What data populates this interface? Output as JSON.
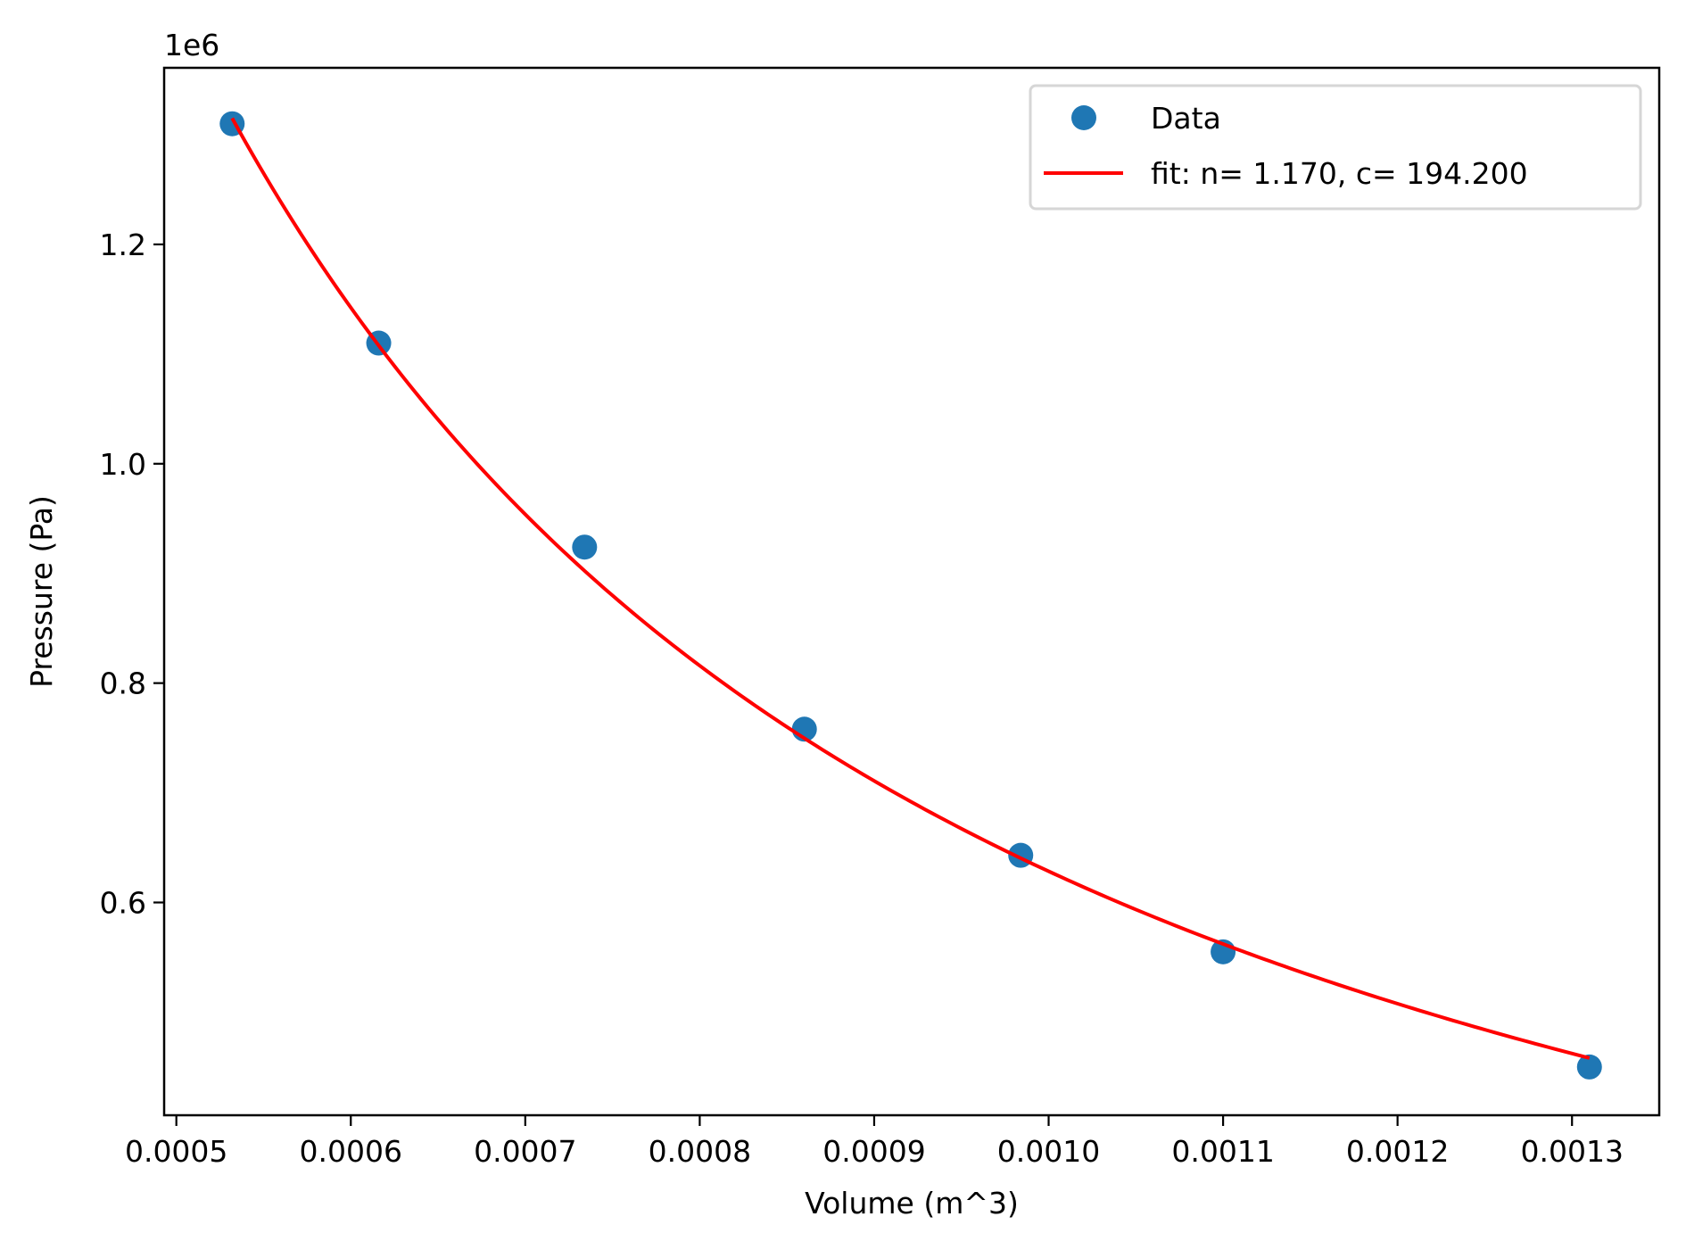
{
  "chart_data": {
    "type": "scatter",
    "title": "",
    "xlabel": "Volume (m^3)",
    "ylabel": "Pressure (Pa)",
    "y_offset_label": "1e6",
    "xlim": [
      0.000493,
      0.00135
    ],
    "ylim": [
      406000,
      1361000
    ],
    "grid": false,
    "legend_position": "upper right",
    "x_ticks": [
      0.0005,
      0.0006,
      0.0007,
      0.0008,
      0.0009,
      0.001,
      0.0011,
      0.0012,
      0.0013
    ],
    "x_tick_labels": [
      "0.0005",
      "0.0006",
      "0.0007",
      "0.0008",
      "0.0009",
      "0.0010",
      "0.0011",
      "0.0012",
      "0.0013"
    ],
    "y_ticks": [
      600000,
      800000,
      1000000,
      1200000
    ],
    "y_tick_labels": [
      "0.6",
      "0.8",
      "1.0",
      "1.2"
    ],
    "series": [
      {
        "name": "Data",
        "type": "scatter",
        "color": "#1f77b4",
        "x": [
          0.000532,
          0.000616,
          0.000734,
          0.00086,
          0.000984,
          0.0011,
          0.00131
        ],
        "y": [
          1310000,
          1110000,
          924000,
          758000,
          643000,
          555000,
          450000
        ]
      },
      {
        "name": "fit: n= 1.170, c= 194.200",
        "type": "line",
        "color": "#ff0000",
        "model": "P = c / V^n",
        "params": {
          "n": 1.17,
          "c": 194.2
        },
        "x_range": [
          0.000532,
          0.00131
        ]
      }
    ]
  },
  "legend": {
    "items": [
      {
        "label": "Data",
        "kind": "marker",
        "color": "#1f77b4"
      },
      {
        "label": "fit: n= 1.170, c= 194.200",
        "kind": "line",
        "color": "#ff0000"
      }
    ]
  }
}
